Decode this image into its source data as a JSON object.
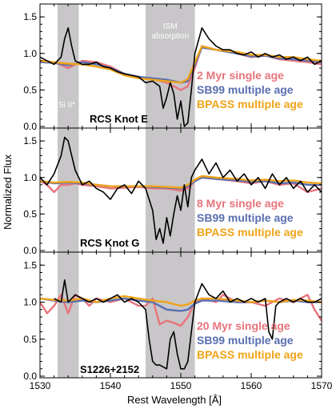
{
  "chart_data": {
    "type": "line",
    "xlabel": "Rest Wavelength [Å]",
    "ylabel": "Normalized Flux",
    "xlim": [
      1530,
      1570
    ],
    "x_ticks": [
      1530,
      1540,
      1550,
      1560,
      1570
    ],
    "grid": false,
    "colors": {
      "data": "#000000",
      "single_age": "#e8747c",
      "sb99": "#5a6fb0",
      "bpass": "#f0a418",
      "shade": "#c8c6c8"
    },
    "shaded_regions": [
      {
        "x": [
          1532.5,
          1535.5
        ],
        "label": "Si II*"
      },
      {
        "x": [
          1545,
          1552
        ],
        "label": "ISM absorption"
      }
    ],
    "panels": [
      {
        "name": "RCS Knot E",
        "ylim": [
          0,
          1.6
        ],
        "y_ticks": [
          "0.0",
          "0.5",
          "1.0",
          "1.5"
        ],
        "legend": [
          "2 Myr single age",
          "SB99 multiple age",
          "BPASS multiple age"
        ],
        "series": [
          {
            "name": "data",
            "x": [
              1530,
              1531,
              1532,
              1533,
              1533.5,
              1534,
              1534.5,
              1535,
              1536,
              1537,
              1538,
              1539,
              1540,
              1541,
              1542,
              1543,
              1544,
              1545,
              1546,
              1547,
              1547.5,
              1548,
              1548.5,
              1549,
              1549.5,
              1550,
              1550.5,
              1551,
              1551.5,
              1552,
              1553,
              1554,
              1555,
              1556,
              1557,
              1558,
              1559,
              1560,
              1561,
              1562,
              1563,
              1564,
              1565,
              1566,
              1567,
              1568,
              1569,
              1570
            ],
            "y": [
              0.95,
              0.9,
              0.85,
              0.95,
              1.2,
              1.35,
              1.1,
              0.9,
              0.85,
              0.85,
              0.88,
              0.82,
              0.8,
              0.75,
              0.72,
              0.7,
              0.68,
              0.6,
              0.62,
              0.55,
              0.25,
              0.4,
              0.6,
              0.45,
              0.1,
              0.35,
              0.0,
              0.05,
              0.5,
              1.0,
              1.35,
              1.2,
              1.1,
              1.05,
              1.05,
              1.0,
              0.98,
              1.02,
              0.95,
              1.0,
              0.95,
              0.98,
              0.92,
              0.95,
              0.9,
              0.95,
              0.85,
              0.9
            ]
          },
          {
            "name": "2 Myr single age",
            "x": [
              1530,
              1532,
              1534,
              1536,
              1538,
              1540,
              1542,
              1544,
              1546,
              1548,
              1550,
              1551,
              1552,
              1553,
              1555,
              1558,
              1560,
              1562,
              1564,
              1566,
              1568,
              1570
            ],
            "y": [
              0.9,
              0.88,
              0.8,
              0.9,
              0.88,
              0.82,
              0.72,
              0.68,
              0.65,
              0.6,
              0.5,
              0.55,
              0.8,
              1.1,
              1.05,
              1.0,
              0.95,
              0.97,
              0.92,
              0.9,
              0.88,
              0.85
            ]
          },
          {
            "name": "SB99 multiple age",
            "x": [
              1530,
              1532,
              1534,
              1536,
              1538,
              1540,
              1542,
              1544,
              1546,
              1548,
              1550,
              1551,
              1552,
              1553,
              1555,
              1558,
              1560,
              1562,
              1564,
              1566,
              1568,
              1570
            ],
            "y": [
              0.88,
              0.87,
              0.84,
              0.88,
              0.85,
              0.8,
              0.72,
              0.68,
              0.66,
              0.64,
              0.6,
              0.62,
              0.85,
              1.08,
              1.05,
              1.0,
              0.96,
              0.97,
              0.93,
              0.92,
              0.9,
              0.88
            ]
          },
          {
            "name": "BPASS multiple age",
            "x": [
              1530,
              1532,
              1534,
              1536,
              1538,
              1540,
              1542,
              1544,
              1546,
              1548,
              1550,
              1551,
              1552,
              1553,
              1555,
              1558,
              1560,
              1562,
              1564,
              1566,
              1568,
              1570
            ],
            "y": [
              0.9,
              0.88,
              0.86,
              0.85,
              0.82,
              0.78,
              0.7,
              0.66,
              0.64,
              0.62,
              0.6,
              0.65,
              0.88,
              1.1,
              1.05,
              1.02,
              0.98,
              0.98,
              0.95,
              0.95,
              0.92,
              0.9
            ]
          }
        ]
      },
      {
        "name": "RCS Knot G",
        "ylim": [
          0,
          1.6
        ],
        "y_ticks": [
          "0.0",
          "0.5",
          "1.0",
          "1.5"
        ],
        "legend": [
          "8 Myr single age",
          "SB99 multiple age",
          "BPASS multiple age"
        ],
        "series": [
          {
            "name": "data",
            "x": [
              1530,
              1531,
              1532,
              1533,
              1533.5,
              1534,
              1534.5,
              1535,
              1536,
              1537,
              1538,
              1539,
              1540,
              1541,
              1542,
              1543,
              1544,
              1545,
              1546,
              1546.5,
              1547,
              1547.5,
              1548,
              1548.5,
              1549,
              1549.5,
              1550,
              1550.5,
              1551,
              1551.5,
              1552,
              1553,
              1554,
              1555,
              1556,
              1557,
              1558,
              1559,
              1560,
              1561,
              1562,
              1563,
              1564,
              1565,
              1566,
              1567,
              1568,
              1569,
              1570
            ],
            "y": [
              1.0,
              0.9,
              1.05,
              1.3,
              1.55,
              1.5,
              1.3,
              1.1,
              0.9,
              0.95,
              0.85,
              0.8,
              0.7,
              0.85,
              0.9,
              0.78,
              0.95,
              0.85,
              0.55,
              0.15,
              0.3,
              0.1,
              0.45,
              0.2,
              0.5,
              0.75,
              0.55,
              0.9,
              0.6,
              1.0,
              1.1,
              1.25,
              1.05,
              1.2,
              1.0,
              1.1,
              0.95,
              1.05,
              0.9,
              1.0,
              0.85,
              1.05,
              0.9,
              1.0,
              0.85,
              0.95,
              0.8,
              0.9,
              0.8
            ]
          },
          {
            "name": "8 Myr single age",
            "x": [
              1530,
              1531,
              1532,
              1533,
              1534,
              1535,
              1536,
              1538,
              1540,
              1542,
              1544,
              1546,
              1548,
              1550,
              1551,
              1552,
              1553,
              1555,
              1558,
              1560,
              1562,
              1564,
              1566,
              1568,
              1570
            ],
            "y": [
              0.95,
              0.9,
              0.8,
              0.9,
              0.9,
              0.92,
              0.9,
              0.88,
              0.85,
              0.86,
              0.87,
              0.85,
              0.85,
              0.82,
              0.85,
              0.95,
              1.0,
              0.98,
              0.95,
              0.92,
              0.95,
              0.9,
              0.92,
              0.8,
              0.85
            ]
          },
          {
            "name": "SB99 multiple age",
            "x": [
              1530,
              1532,
              1534,
              1536,
              1538,
              1540,
              1542,
              1544,
              1546,
              1548,
              1550,
              1551,
              1552,
              1553,
              1555,
              1558,
              1560,
              1562,
              1564,
              1566,
              1568,
              1570
            ],
            "y": [
              0.95,
              0.92,
              0.93,
              0.92,
              0.9,
              0.88,
              0.88,
              0.88,
              0.87,
              0.86,
              0.85,
              0.88,
              0.95,
              1.0,
              0.98,
              0.96,
              0.94,
              0.95,
              0.92,
              0.93,
              0.9,
              0.9
            ]
          },
          {
            "name": "BPASS multiple age",
            "x": [
              1530,
              1532,
              1534,
              1536,
              1538,
              1540,
              1542,
              1544,
              1546,
              1548,
              1550,
              1551,
              1552,
              1553,
              1555,
              1558,
              1560,
              1562,
              1564,
              1566,
              1568,
              1570
            ],
            "y": [
              0.95,
              0.93,
              0.94,
              0.93,
              0.9,
              0.88,
              0.88,
              0.88,
              0.88,
              0.87,
              0.86,
              0.9,
              0.97,
              1.02,
              1.0,
              0.98,
              0.96,
              0.97,
              0.95,
              0.96,
              0.93,
              0.92
            ]
          }
        ]
      },
      {
        "name": "S1226+2152",
        "ylim": [
          0,
          1.6
        ],
        "y_ticks": [
          "0.0",
          "0.5",
          "1.0",
          "1.5"
        ],
        "legend": [
          "20 Myr single age",
          "SB99 multiple age",
          "BPASS multiple age"
        ],
        "series": [
          {
            "name": "data",
            "x": [
              1532,
              1533,
              1533.5,
              1534,
              1535,
              1536,
              1537,
              1538,
              1539,
              1540,
              1541,
              1542,
              1543,
              1544,
              1545,
              1545.5,
              1546,
              1546.5,
              1547,
              1548,
              1548.5,
              1549,
              1549.5,
              1550,
              1550.5,
              1551,
              1551.5,
              1552,
              1553,
              1554,
              1555,
              1556,
              1557,
              1558,
              1559,
              1560,
              1561,
              1562,
              1562.5,
              1563,
              1563.5,
              1564,
              1565,
              1566,
              1567,
              1568,
              1569,
              1570
            ],
            "y": [
              1.05,
              1.0,
              1.3,
              1.0,
              1.1,
              1.05,
              1.0,
              1.05,
              1.0,
              1.05,
              1.1,
              1.0,
              1.05,
              1.0,
              0.9,
              0.5,
              0.2,
              0.15,
              0.15,
              0.1,
              0.5,
              0.6,
              0.3,
              0.1,
              0.1,
              0.2,
              0.6,
              1.0,
              1.25,
              1.1,
              1.05,
              1.15,
              1.0,
              1.05,
              1.0,
              1.05,
              1.0,
              1.05,
              0.6,
              0.5,
              0.95,
              1.0,
              1.05,
              1.0,
              1.05,
              1.0,
              1.0,
              1.05
            ]
          },
          {
            "name": "20 Myr single age",
            "x": [
              1530,
              1531,
              1532,
              1533,
              1534,
              1535,
              1536,
              1537,
              1538,
              1540,
              1542,
              1544,
              1545,
              1546,
              1547,
              1548,
              1549,
              1550,
              1551,
              1552,
              1553,
              1555,
              1556,
              1557,
              1558,
              1560,
              1562,
              1564,
              1566,
              1568,
              1569,
              1570
            ],
            "y": [
              1.0,
              0.85,
              0.95,
              1.1,
              0.85,
              1.1,
              1.05,
              0.95,
              1.05,
              1.0,
              1.05,
              0.95,
              0.95,
              1.05,
              0.7,
              0.75,
              0.72,
              0.68,
              0.8,
              1.0,
              1.05,
              1.0,
              1.1,
              1.05,
              1.0,
              1.0,
              0.95,
              1.05,
              1.0,
              1.1,
              0.9,
              0.75
            ]
          },
          {
            "name": "SB99 multiple age",
            "x": [
              1530,
              1532,
              1534,
              1536,
              1538,
              1540,
              1542,
              1544,
              1546,
              1548,
              1550,
              1551,
              1552,
              1553,
              1555,
              1558,
              1560,
              1562,
              1564,
              1566,
              1568,
              1570
            ],
            "y": [
              1.05,
              1.02,
              1.0,
              1.02,
              1.0,
              1.02,
              1.05,
              1.02,
              1.0,
              0.9,
              0.88,
              0.9,
              0.98,
              1.02,
              1.02,
              1.0,
              1.0,
              1.02,
              1.0,
              1.02,
              1.0,
              1.0
            ]
          },
          {
            "name": "BPASS multiple age",
            "x": [
              1530,
              1532,
              1534,
              1536,
              1538,
              1540,
              1542,
              1544,
              1546,
              1548,
              1550,
              1551,
              1552,
              1553,
              1555,
              1558,
              1560,
              1562,
              1564,
              1566,
              1568,
              1570
            ],
            "y": [
              1.05,
              1.03,
              1.02,
              1.05,
              1.0,
              1.05,
              1.08,
              1.05,
              1.02,
              1.0,
              0.95,
              0.97,
              1.02,
              1.05,
              1.05,
              1.02,
              1.0,
              1.02,
              1.0,
              1.03,
              1.02,
              1.0
            ]
          }
        ]
      }
    ]
  }
}
